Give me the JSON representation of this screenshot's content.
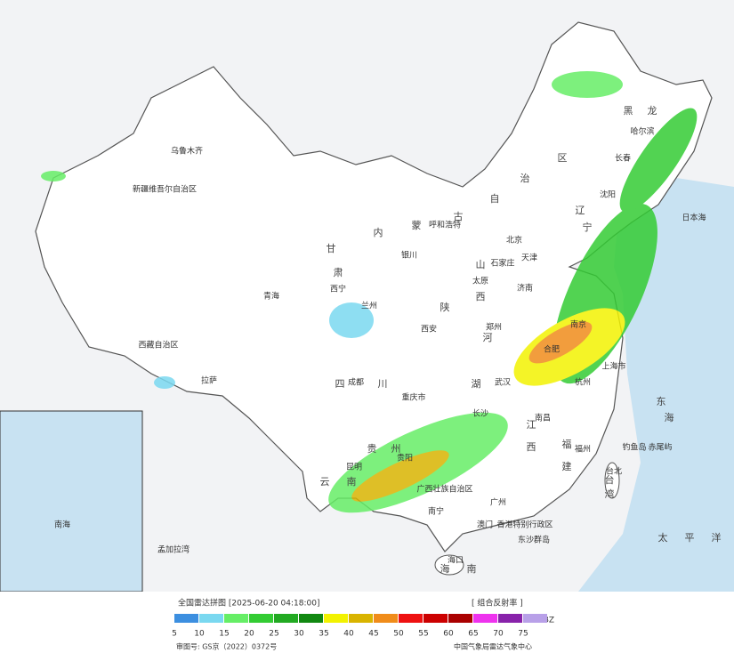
{
  "map": {
    "places": [
      "乌鲁木齐",
      "新疆维吾尔自治区",
      "西藏自治区",
      "拉萨",
      "青海",
      "西宁",
      "甘",
      "肃",
      "内",
      "蒙",
      "古",
      "自",
      "治",
      "区",
      "呼和浩特",
      "北京",
      "天津",
      "石家庄",
      "太原",
      "银川",
      "兰州",
      "西安",
      "郑州",
      "济南",
      "南京",
      "上海市",
      "合肥",
      "武汉",
      "长沙",
      "南昌",
      "杭州",
      "福州",
      "台北",
      "台",
      "湾",
      "广州",
      "南宁",
      "海口",
      "海",
      "南",
      "贵阳",
      "昆明",
      "成都",
      "重庆市",
      "四",
      "川",
      "云",
      "南",
      "贵",
      "州",
      "黑",
      "龙",
      "哈尔滨",
      "长春",
      "沈阳",
      "辽",
      "宁",
      "山",
      "西",
      "陕",
      "河",
      "湖",
      "江",
      "西",
      "福",
      "建",
      "广西壮族自治区",
      "香港特别行政区",
      "澳门",
      "日本海",
      "东",
      "海",
      "太",
      "平",
      "洋",
      "孟加拉湾",
      "南海",
      "钓鱼岛",
      "赤尾屿",
      "东沙群岛"
    ]
  },
  "legend": {
    "title": "全国雷达拼图 [2025-06-20 04:18:00]",
    "product": "[ 组合反射率 ]",
    "unit": "dBZ",
    "items": [
      {
        "value": 5,
        "color": "#3c8fe0"
      },
      {
        "value": 10,
        "color": "#7ad8f0"
      },
      {
        "value": 15,
        "color": "#66ee66"
      },
      {
        "value": 20,
        "color": "#33cc33"
      },
      {
        "value": 25,
        "color": "#22aa22"
      },
      {
        "value": 30,
        "color": "#118811"
      },
      {
        "value": 35,
        "color": "#f2f200"
      },
      {
        "value": 40,
        "color": "#d9b400"
      },
      {
        "value": 45,
        "color": "#f08c1a"
      },
      {
        "value": 50,
        "color": "#ee1111"
      },
      {
        "value": 55,
        "color": "#cc0000"
      },
      {
        "value": 60,
        "color": "#aa0000"
      },
      {
        "value": 65,
        "color": "#ee33ee"
      },
      {
        "value": 70,
        "color": "#8822aa"
      },
      {
        "value": 75,
        "color": "#b8a0e8"
      }
    ]
  },
  "footer": {
    "review": "审图号: GS京（2022）0372号",
    "org": "中国气象局雷达气象中心"
  }
}
